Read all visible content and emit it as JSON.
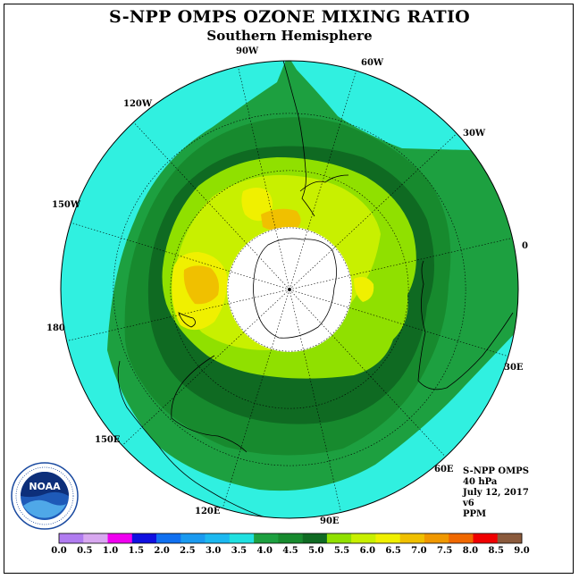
{
  "title": "S-NPP OMPS OZONE MIXING RATIO",
  "subtitle": "Southern Hemisphere",
  "longitude_labels": {
    "lon_90w": "90W",
    "lon_60w": "60W",
    "lon_30w": "30W",
    "lon_0": "0",
    "lon_30e": "30E",
    "lon_60e": "60E",
    "lon_90e": "90E",
    "lon_120e": "120E",
    "lon_150e": "150E",
    "lon_180": "180",
    "lon_150w": "150W",
    "lon_120w": "120W"
  },
  "info": {
    "instrument": "S-NPP OMPS",
    "pressure_level": "40 hPa",
    "date": "July 12, 2017",
    "version": "v6",
    "units": "PPM"
  },
  "logo": {
    "name": "NOAA",
    "ring_text": "NATIONAL OCEANIC AND ATMOSPHERIC ADMINISTRATION · U.S. DEPARTMENT OF COMMERCE"
  },
  "colorbar": {
    "tick_labels": [
      "0.0",
      "0.5",
      "1.0",
      "1.5",
      "2.0",
      "2.5",
      "3.0",
      "3.5",
      "4.0",
      "4.5",
      "5.0",
      "5.5",
      "6.0",
      "6.5",
      "7.0",
      "7.5",
      "8.0",
      "8.5",
      "9.0"
    ],
    "colors": [
      "#b07cf0",
      "#d8a8f0",
      "#f000f0",
      "#1010e0",
      "#1070f0",
      "#1a9af0",
      "#1cb8f0",
      "#20e0e0",
      "#1da040",
      "#178a2e",
      "#0f6a22",
      "#90e000",
      "#c8f000",
      "#f0f000",
      "#f0c000",
      "#f09800",
      "#f06800",
      "#f00000",
      "#8a5a3c"
    ]
  },
  "map_colors": {
    "ocean_cyan": "#30f0e0",
    "band_light_green": "#1da040",
    "band_mid_green": "#178a2e",
    "band_dark_green": "#0f6a22",
    "lime": "#90e000",
    "yellow_green": "#c8f000",
    "yellow": "#f0f000",
    "orange": "#f0c000",
    "light_blue": "#28c8f0"
  }
}
